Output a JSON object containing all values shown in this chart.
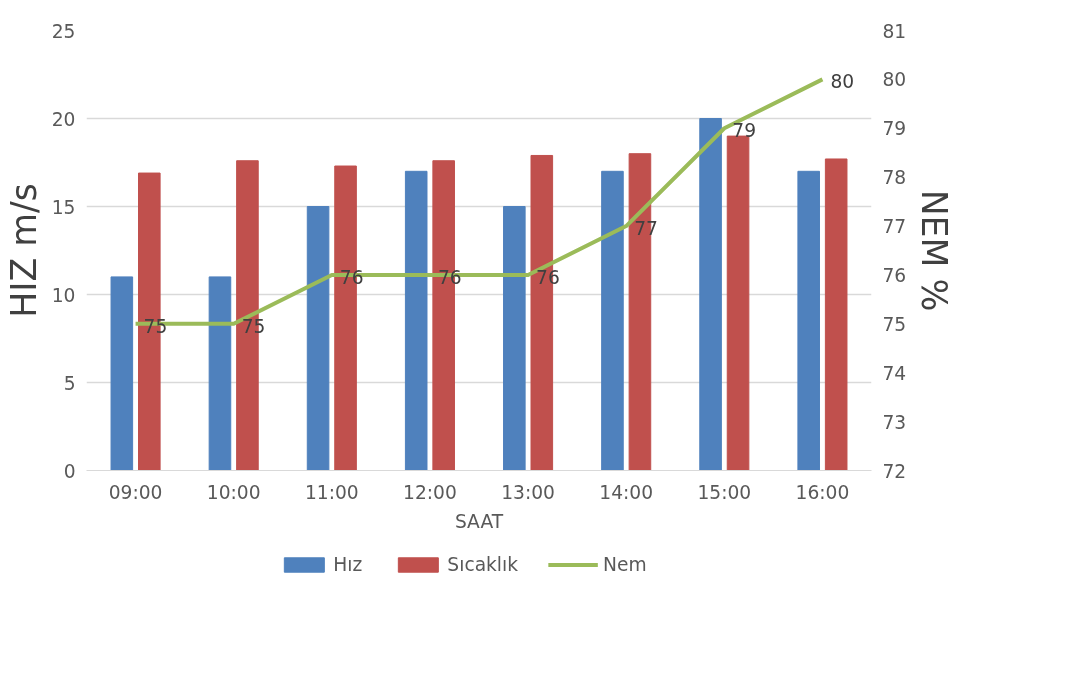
{
  "chart_data": {
    "type": "bar",
    "xlabel": "SAAT",
    "ylabel": "HIZ m/s",
    "y2label": "NEM %",
    "categories": [
      "09:00",
      "10:00",
      "11:00",
      "12:00",
      "13:00",
      "14:00",
      "15:00",
      "16:00"
    ],
    "series": [
      {
        "name": "Hız",
        "color": "#4f81bd",
        "values": [
          11,
          11,
          15,
          17,
          15,
          17,
          20,
          17
        ]
      },
      {
        "name": "Sıcaklık",
        "color": "#c0504d",
        "values": [
          16.9,
          17.6,
          17.3,
          17.6,
          17.9,
          18.0,
          19.0,
          17.7
        ]
      },
      {
        "name": "Nem",
        "type": "line",
        "axis": "y2",
        "color": "#9bbb59",
        "values": [
          75,
          75,
          76,
          76,
          76,
          77,
          79,
          80
        ],
        "value_labels": [
          "75",
          "75",
          "76",
          "76",
          "76",
          "77",
          "79",
          "80"
        ]
      }
    ],
    "ylim": [
      0,
      25
    ],
    "yticks": [
      0,
      5,
      10,
      15,
      20,
      25
    ],
    "y2lim": [
      72,
      81
    ],
    "y2ticks": [
      72,
      73,
      74,
      75,
      76,
      77,
      78,
      79,
      80,
      81
    ],
    "grid": "y",
    "legend": "bottom",
    "marker": "none",
    "line_style": "solid"
  }
}
